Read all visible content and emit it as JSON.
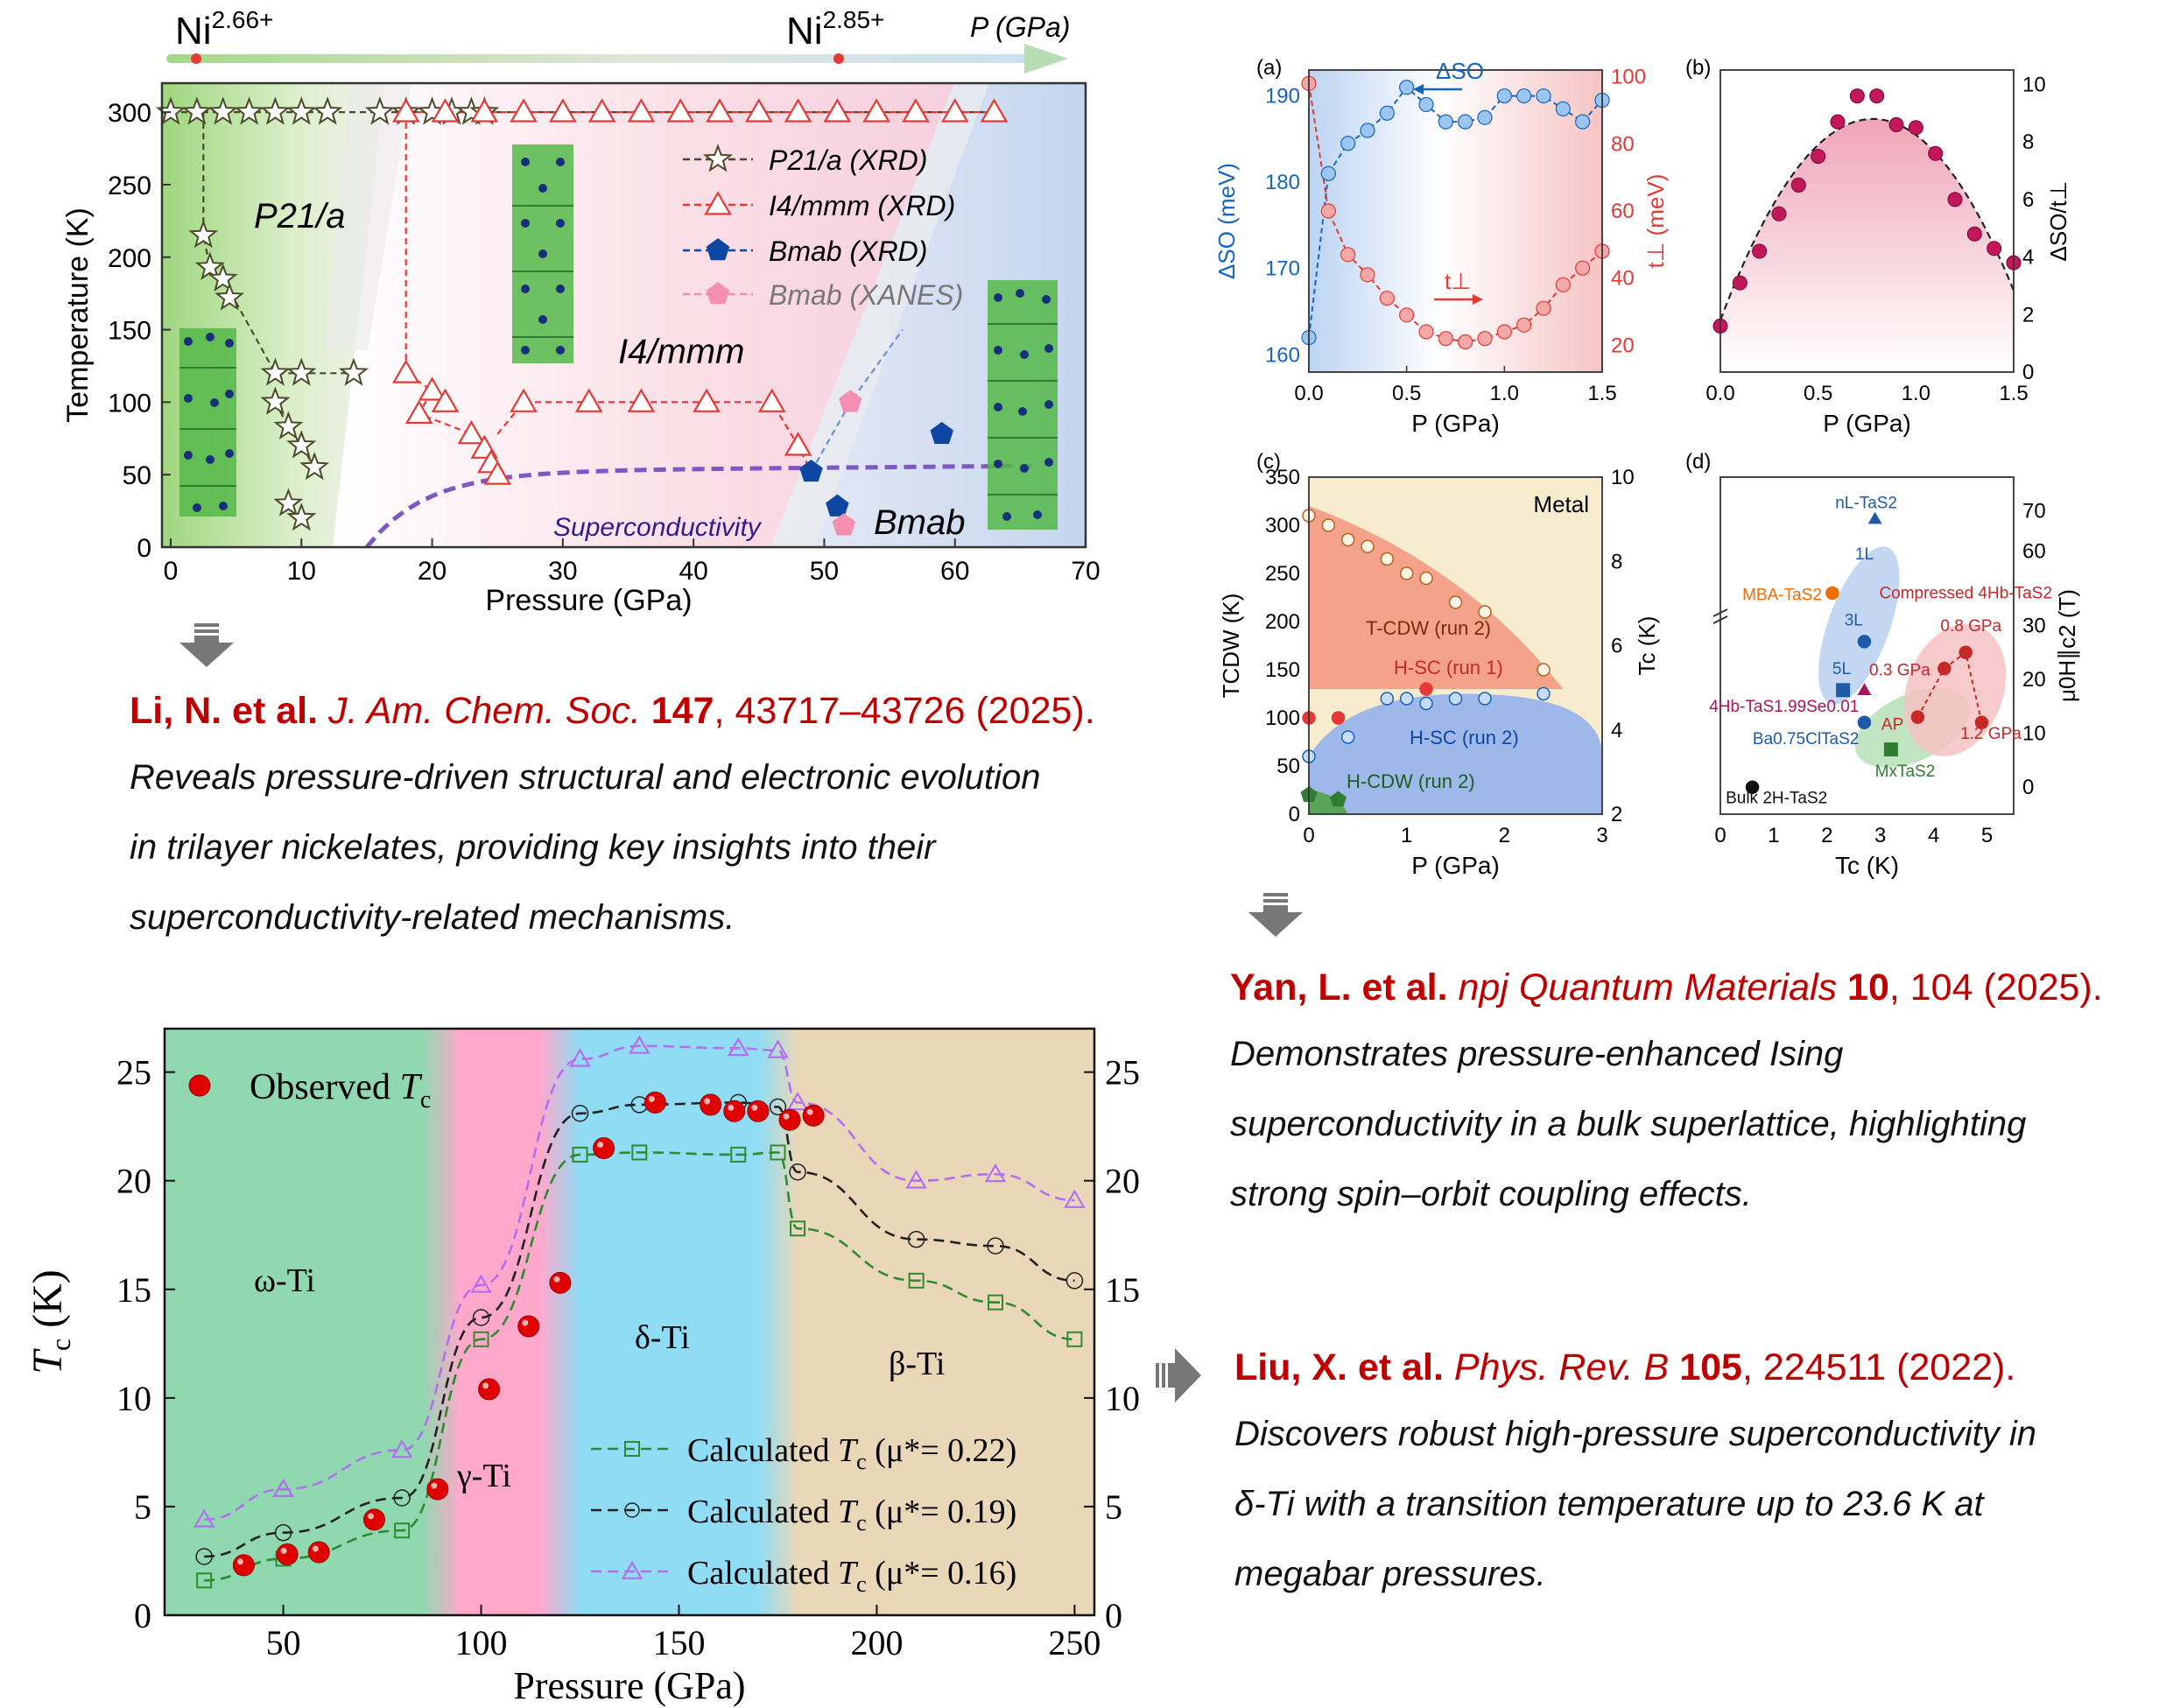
{
  "ref1": {
    "authors": "Li, N. et al.",
    "journal": "J. Am. Chem. Soc.",
    "volume": "147",
    "rest": ", 43717–43726 (2025).",
    "desc": [
      "Reveals pressure-driven structural and electronic evolution",
      "in trilayer nickelates, providing key insights into their",
      "superconductivity-related mechanisms."
    ]
  },
  "ref2": {
    "authors": "Yan, L. et al.",
    "journal": "npj Quantum Materials",
    "volume": "10",
    "rest": ", 104 (2025).",
    "desc": [
      "Demonstrates pressure-enhanced Ising",
      "superconductivity in a bulk superlattice, highlighting",
      "strong spin–orbit coupling effects."
    ]
  },
  "ref3": {
    "authors": "Liu, X. et al.",
    "journal": "Phys. Rev. B",
    "volume": "105",
    "rest": ", 224511 (2022).",
    "desc": [
      "Discovers robust high-pressure superconductivity in",
      "δ-Ti with a transition temperature up to 23.6 K at",
      "megabar pressures."
    ]
  },
  "fig1": {
    "top_labels": {
      "ni1": "Ni",
      "ni1_sup": "2.66+",
      "ni2": "Ni",
      "ni2_sup": "2.85+",
      "p": "P (GPa)"
    },
    "phase_labels": {
      "p21a": "P21/a",
      "i4mmm": "I4/mmm",
      "bmab": "Bmab",
      "sc": "Superconductivity"
    },
    "legend": [
      "P21/a (XRD)",
      "I4/mmm (XRD)",
      "Bmab (XRD)",
      "Bmab (XANES)"
    ],
    "colors": {
      "p21a": "#4a4a2a",
      "i4mmm": "#e53935",
      "bmab_xrd": "#0d47a1",
      "bmab_xanes": "#f48fb1",
      "sc": "#7e57c2"
    },
    "chart_data": {
      "type": "scatter",
      "xlabel": "Pressure (GPa)",
      "ylabel": "Temperature (K)",
      "xlim": [
        0,
        70
      ],
      "ylim": [
        0,
        320
      ],
      "xticks": [
        0,
        10,
        20,
        30,
        40,
        50,
        60,
        70
      ],
      "yticks": [
        0,
        50,
        100,
        150,
        200,
        250,
        300
      ],
      "series": [
        {
          "name": "P21/a (XRD)",
          "marker": "star",
          "points": [
            [
              0,
              300
            ],
            [
              2,
              300
            ],
            [
              4,
              300
            ],
            [
              6,
              300
            ],
            [
              8,
              300
            ],
            [
              10,
              300
            ],
            [
              12,
              300
            ],
            [
              16,
              300
            ],
            [
              18,
              300
            ],
            [
              20,
              300
            ],
            [
              21.5,
              300
            ],
            [
              23,
              300
            ],
            [
              24,
              300
            ],
            [
              2.5,
              215
            ],
            [
              3,
              193
            ],
            [
              4,
              185
            ],
            [
              4.5,
              172
            ],
            [
              8,
              120
            ],
            [
              10,
              120
            ],
            [
              14,
              120
            ],
            [
              8,
              100
            ],
            [
              9,
              83
            ],
            [
              10,
              70
            ],
            [
              11,
              55
            ],
            [
              9,
              30
            ],
            [
              10,
              20
            ]
          ]
        },
        {
          "name": "I4/mmm (XRD)",
          "marker": "triangle",
          "points": [
            [
              18,
              300
            ],
            [
              21,
              300
            ],
            [
              24,
              300
            ],
            [
              27,
              300
            ],
            [
              30,
              300
            ],
            [
              33,
              300
            ],
            [
              36,
              300
            ],
            [
              39,
              300
            ],
            [
              42,
              300
            ],
            [
              45,
              300
            ],
            [
              48,
              300
            ],
            [
              51,
              300
            ],
            [
              54,
              300
            ],
            [
              57,
              300
            ],
            [
              60,
              300
            ],
            [
              63,
              300
            ],
            [
              18,
              120
            ],
            [
              20,
              108
            ],
            [
              21,
              100
            ],
            [
              19,
              92
            ],
            [
              23,
              78
            ],
            [
              24,
              68
            ],
            [
              24.5,
              58
            ],
            [
              25,
              50
            ],
            [
              27,
              100
            ],
            [
              32,
              100
            ],
            [
              36,
              100
            ],
            [
              41,
              100
            ],
            [
              46,
              100
            ],
            [
              48,
              70
            ]
          ]
        },
        {
          "name": "Bmab (XRD)",
          "marker": "pentagon",
          "points": [
            [
              49,
              52
            ],
            [
              51,
              28
            ],
            [
              59,
              78
            ]
          ]
        },
        {
          "name": "Bmab (XANES)",
          "marker": "pentagon",
          "points": [
            [
              52,
              100
            ],
            [
              51.5,
              15
            ]
          ]
        }
      ],
      "annotations": [
        "P21/a",
        "I4/mmm",
        "Bmab",
        "Superconductivity"
      ]
    }
  },
  "fig2": {
    "panel_a": {
      "label": "(a)",
      "chart_data": {
        "type": "line",
        "xlabel": "P (GPa)",
        "ylabel_left": "ΔSO (meV)",
        "ylabel_right": "t⊥ (meV)",
        "xlim": [
          0,
          1.5
        ],
        "ylim_left": [
          158,
          193
        ],
        "ylim_right": [
          12,
          102
        ],
        "xticks": [
          0.0,
          0.5,
          1.0,
          1.5
        ],
        "yticks_left": [
          160,
          170,
          180,
          190
        ],
        "yticks_right": [
          20,
          40,
          60,
          80,
          100
        ],
        "series": [
          {
            "name": "ΔSO",
            "axis": "left",
            "x": [
              0,
              0.1,
              0.2,
              0.3,
              0.4,
              0.5,
              0.6,
              0.7,
              0.8,
              0.9,
              1.0,
              1.1,
              1.2,
              1.3,
              1.4,
              1.5
            ],
            "y": [
              162,
              181,
              184.5,
              186,
              188,
              191,
              189,
              187,
              187,
              187.5,
              190,
              190,
              190,
              188.5,
              187,
              189.5
            ]
          },
          {
            "name": "t⊥",
            "axis": "right",
            "x": [
              0,
              0.1,
              0.2,
              0.3,
              0.4,
              0.5,
              0.6,
              0.7,
              0.8,
              0.9,
              1.0,
              1.1,
              1.2,
              1.3,
              1.4,
              1.5
            ],
            "y": [
              98,
              60,
              47,
              41,
              34,
              29,
              24,
              22,
              21,
              22,
              24,
              26,
              31,
              38,
              43,
              48
            ]
          }
        ],
        "annotations": [
          "ΔSO",
          "t⊥"
        ]
      }
    },
    "panel_b": {
      "label": "(b)",
      "chart_data": {
        "type": "scatter",
        "xlabel": "P (GPa)",
        "ylabel_right": "ΔSO/t⊥",
        "xlim": [
          0,
          1.5
        ],
        "ylim": [
          0,
          10.5
        ],
        "xticks": [
          0.0,
          0.5,
          1.0,
          1.5
        ],
        "yticks": [
          0,
          2,
          4,
          6,
          8,
          10
        ],
        "x": [
          0,
          0.1,
          0.2,
          0.3,
          0.4,
          0.5,
          0.6,
          0.7,
          0.8,
          0.9,
          1.0,
          1.1,
          1.2,
          1.3,
          1.4,
          1.5
        ],
        "y": [
          1.6,
          3.1,
          4.2,
          5.5,
          6.5,
          7.5,
          8.7,
          9.6,
          9.6,
          8.6,
          8.5,
          7.6,
          6.0,
          4.8,
          4.3,
          3.8
        ]
      }
    },
    "panel_c": {
      "label": "(c)",
      "chart_data": {
        "type": "scatter",
        "xlabel": "P (GPa)",
        "ylabel_left": "TCDW (K)",
        "ylabel_right": "Tc (K)",
        "xlim": [
          0,
          3
        ],
        "ylim_left": [
          0,
          350
        ],
        "ylim_right": [
          2,
          10
        ],
        "xticks": [
          0,
          1,
          2,
          3
        ],
        "yticks_left": [
          0,
          50,
          100,
          150,
          200,
          250,
          300,
          350
        ],
        "yticks_right": [
          2,
          4,
          6,
          8,
          10
        ],
        "series": [
          {
            "name": "T-CDW (run 2)",
            "x": [
              0,
              0.2,
              0.4,
              0.6,
              0.8,
              1.0,
              1.2,
              1.5,
              1.8,
              2.4
            ],
            "y": [
              310,
              300,
              285,
              278,
              265,
              250,
              245,
              220,
              210,
              150
            ]
          },
          {
            "name": "H-SC (run 1)",
            "x": [
              0,
              0.3,
              1.2
            ],
            "y": [
              100,
              100,
              130
            ]
          },
          {
            "name": "H-SC (run 2)",
            "x": [
              0,
              0.4,
              0.8,
              1.0,
              1.2,
              1.5,
              1.8,
              2.4
            ],
            "y": [
              60,
              80,
              120,
              120,
              115,
              120,
              120,
              125
            ]
          },
          {
            "name": "H-CDW (run 2)",
            "x": [
              0,
              0.3
            ],
            "y": [
              20,
              15
            ]
          }
        ],
        "annotations": [
          "Metal",
          "T-CDW (run 2)",
          "H-SC (run 1)",
          "H-SC (run 2)",
          "H-CDW (run 2)"
        ]
      }
    },
    "panel_d": {
      "label": "(d)",
      "chart_data": {
        "type": "scatter",
        "xlabel": "Tc (K)",
        "ylabel_right": "μ0H∥c2 (T)",
        "xlim": [
          0,
          5.5
        ],
        "ylim": [
          -5,
          75
        ],
        "xticks": [
          0,
          1,
          2,
          3,
          4,
          5
        ],
        "yticks": [
          0,
          10,
          20,
          30,
          60,
          70
        ],
        "points": [
          {
            "label": "nL-TaS2",
            "x": 2.9,
            "y": 68
          },
          {
            "label": "MBA-TaS2",
            "x": 2.1,
            "y": 36
          },
          {
            "label": "3L",
            "x": 2.7,
            "y": 27
          },
          {
            "label": "5L",
            "x": 2.3,
            "y": 18
          },
          {
            "label": "4Hb-TaS1.99Se0.01",
            "x": 2.7,
            "y": 18
          },
          {
            "label": "Ba0.75ClTaS2",
            "x": 2.7,
            "y": 12
          },
          {
            "label": "MxTaS2",
            "x": 3.2,
            "y": 7
          },
          {
            "label": "Bulk 2H-TaS2",
            "x": 0.6,
            "y": 0
          },
          {
            "label": "AP",
            "x": 3.7,
            "y": 13
          },
          {
            "label": "0.3 GPa",
            "x": 4.2,
            "y": 22
          },
          {
            "label": "0.8 GPa",
            "x": 4.6,
            "y": 25
          },
          {
            "label": "1.2 GPa",
            "x": 4.9,
            "y": 12
          }
        ],
        "annotations": [
          "1L",
          "3L",
          "5L",
          "Compressed 4Hb-TaS2"
        ]
      }
    }
  },
  "fig3": {
    "phase_labels": {
      "omega": "ω-Ti",
      "gamma": "γ-Ti",
      "delta": "δ-Ti",
      "beta": "β-Ti"
    },
    "legend": {
      "observed": "Observed T",
      "observed_sub": "c",
      "calc1": "Calculated T",
      "calc1_tail": " (μ*= 0.22)",
      "calc2": "Calculated T",
      "calc2_tail": " (μ*= 0.19)",
      "calc3": "Calculated T",
      "calc3_tail": " (μ*= 0.16)",
      "sub": "c"
    },
    "colors": {
      "observed": "#e00000",
      "mu022": "#2e8b2e",
      "mu019": "#222222",
      "mu016": "#b46ff0",
      "omega": "#8fd8b0",
      "gamma": "#ffa8cc",
      "delta": "#8fdcf4",
      "beta": "#e9d7b8"
    },
    "chart_data": {
      "type": "scatter",
      "xlabel": "Pressure (GPa)",
      "ylabel": "Tc (K)",
      "xlim": [
        20,
        255
      ],
      "ylim": [
        0,
        27
      ],
      "xticks": [
        50,
        100,
        150,
        200,
        250
      ],
      "yticks": [
        0,
        5,
        10,
        15,
        20,
        25
      ],
      "series": [
        {
          "name": "Observed Tc",
          "x": [
            40,
            51,
            59,
            73,
            89,
            102,
            112,
            120,
            131,
            144,
            158,
            164,
            170,
            178,
            184
          ],
          "y": [
            2.3,
            2.8,
            2.9,
            4.4,
            5.8,
            10.4,
            13.3,
            15.3,
            21.5,
            23.6,
            23.5,
            23.2,
            23.2,
            22.8,
            23.0
          ]
        },
        {
          "name": "Calculated Tc (μ*= 0.22)",
          "x": [
            30,
            50,
            80,
            100,
            125,
            140,
            165,
            175,
            180,
            210,
            230,
            250
          ],
          "y": [
            1.6,
            2.6,
            3.9,
            12.7,
            21.2,
            21.3,
            21.2,
            21.3,
            17.8,
            15.4,
            14.4,
            12.7
          ]
        },
        {
          "name": "Calculated Tc (μ*= 0.19)",
          "x": [
            30,
            50,
            80,
            100,
            125,
            140,
            165,
            175,
            180,
            210,
            230,
            250
          ],
          "y": [
            2.7,
            3.8,
            5.4,
            13.7,
            23.1,
            23.5,
            23.6,
            23.4,
            20.4,
            17.3,
            17.0,
            15.4
          ]
        },
        {
          "name": "Calculated Tc (μ*= 0.16)",
          "x": [
            30,
            50,
            80,
            100,
            125,
            140,
            165,
            175,
            180,
            210,
            230,
            250
          ],
          "y": [
            4.4,
            5.8,
            7.6,
            15.2,
            25.6,
            26.2,
            26.1,
            26.0,
            23.6,
            20.0,
            20.3,
            19.1
          ]
        }
      ]
    }
  }
}
